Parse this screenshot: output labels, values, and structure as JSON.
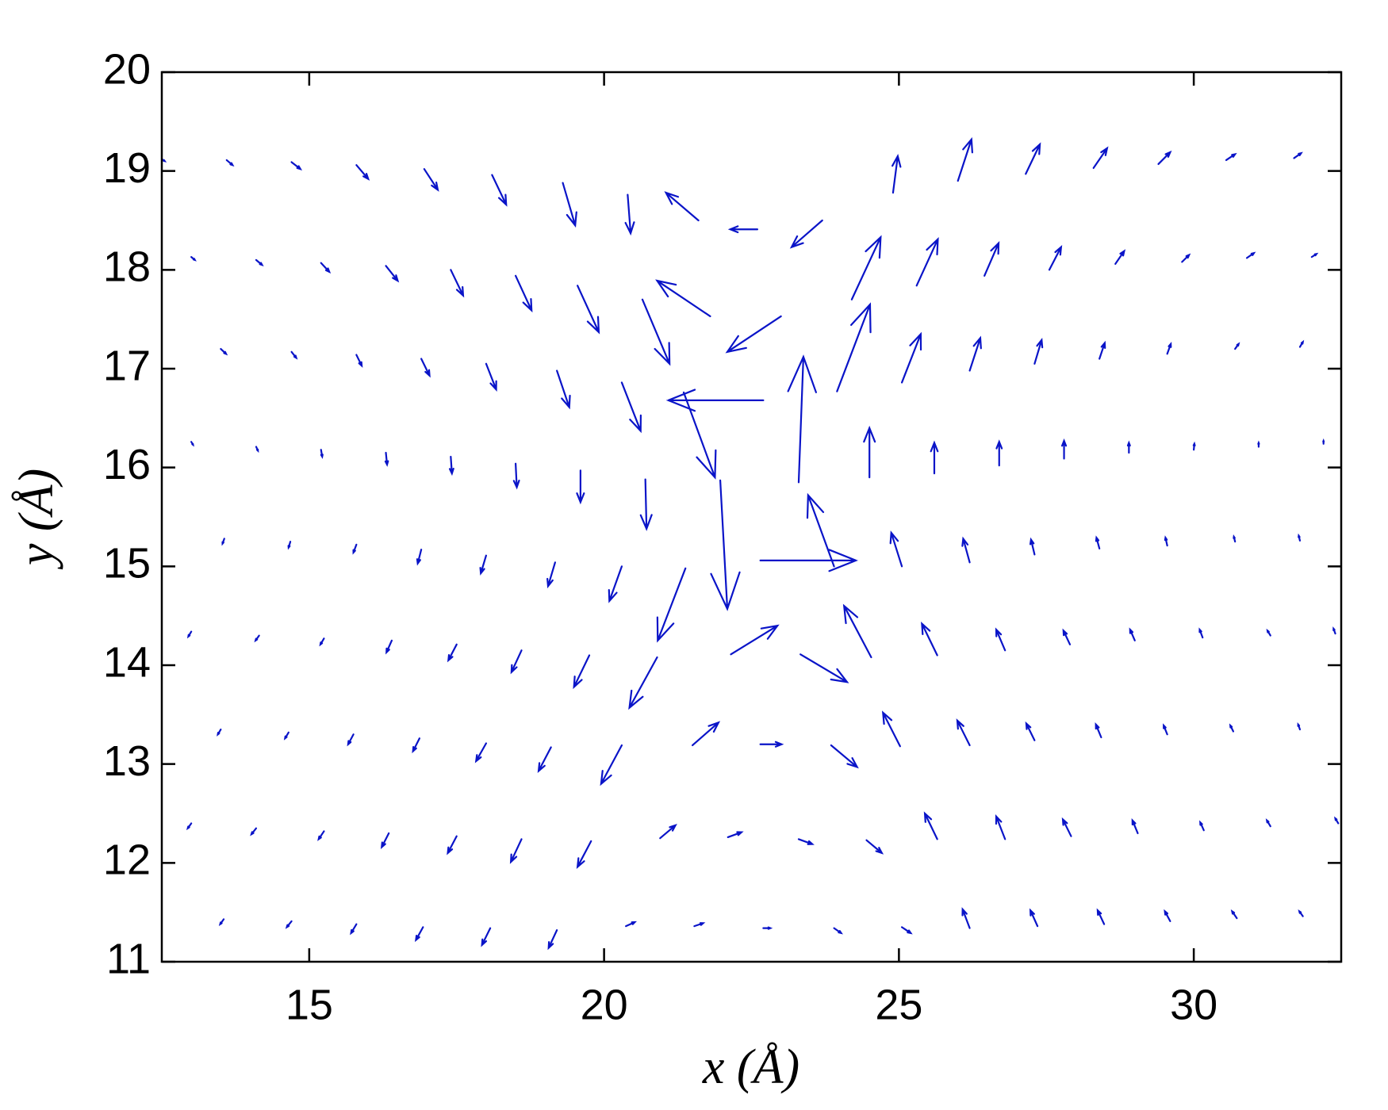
{
  "chart_data": {
    "type": "quiver",
    "xlabel": "x (Å)",
    "ylabel": "y (Å)",
    "xlim": [
      12.5,
      32.5
    ],
    "ylim": [
      11,
      20
    ],
    "xticks": [
      15,
      20,
      25,
      30
    ],
    "yticks": [
      11,
      12,
      13,
      14,
      15,
      16,
      17,
      18,
      19,
      20
    ],
    "color": "#0a14c8",
    "x": [
      12.5,
      13.6,
      14.7,
      15.8,
      16.95,
      18.1,
      19.3,
      20.4,
      21.6,
      22.6,
      23.7,
      24.9,
      26.0,
      27.15,
      28.3,
      29.4,
      30.55,
      31.7,
      13.0,
      14.1,
      15.2,
      16.3,
      17.4,
      18.5,
      19.55,
      20.65,
      21.8,
      23.0,
      24.2,
      25.3,
      26.45,
      27.55,
      28.67,
      29.8,
      30.9,
      32.0,
      13.5,
      14.7,
      15.8,
      16.9,
      18.0,
      19.2,
      20.3,
      22.7,
      23.95,
      25.05,
      26.2,
      27.3,
      28.4,
      29.55,
      30.7,
      31.8,
      13.0,
      14.1,
      15.2,
      16.3,
      17.4,
      18.5,
      19.6,
      20.7,
      21.35,
      23.3,
      24.5,
      25.6,
      26.7,
      27.8,
      28.9,
      30.0,
      31.1,
      32.2,
      13.56,
      14.68,
      15.8,
      16.9,
      18.0,
      19.17,
      20.3,
      21.38,
      21.97,
      22.65,
      23.9,
      25.05,
      26.2,
      27.3,
      28.4,
      29.55,
      30.7,
      31.8,
      13.0,
      14.15,
      15.25,
      16.4,
      17.5,
      18.6,
      19.75,
      20.9,
      22.15,
      23.33,
      24.53,
      25.65,
      26.8,
      27.9,
      29.0,
      30.15,
      31.3,
      32.4,
      13.5,
      14.65,
      15.75,
      16.87,
      18.0,
      19.1,
      20.3,
      21.5,
      22.65,
      23.85,
      25.02,
      26.2,
      27.3,
      28.43,
      29.55,
      30.67,
      31.8,
      13.0,
      14.1,
      15.25,
      16.35,
      17.5,
      18.6,
      19.78,
      20.95,
      22.1,
      23.3,
      24.45,
      25.65,
      26.8,
      27.92,
      29.05,
      30.17,
      31.3,
      32.45,
      13.55,
      14.7,
      15.8,
      16.93,
      18.07,
      19.2,
      20.37,
      21.53,
      22.7,
      23.9,
      25.05,
      26.2,
      27.35,
      28.48,
      29.6,
      30.73,
      31.85
    ],
    "y": [
      19.12,
      19.11,
      19.09,
      19.06,
      19.02,
      18.96,
      18.88,
      18.76,
      18.5,
      18.41,
      18.5,
      18.78,
      18.9,
      18.97,
      19.03,
      19.07,
      19.11,
      19.13,
      18.13,
      18.1,
      18.07,
      18.04,
      18.0,
      17.94,
      17.84,
      17.7,
      17.53,
      17.53,
      17.7,
      17.84,
      17.94,
      18.0,
      18.06,
      18.08,
      18.12,
      18.13,
      17.2,
      17.17,
      17.14,
      17.1,
      17.05,
      16.98,
      16.86,
      16.68,
      16.77,
      16.86,
      16.98,
      17.05,
      17.1,
      17.15,
      17.2,
      17.22,
      16.26,
      16.21,
      16.18,
      16.15,
      16.11,
      16.04,
      15.97,
      15.88,
      16.76,
      15.85,
      15.9,
      15.94,
      16.02,
      16.09,
      16.15,
      16.18,
      16.21,
      16.24,
      15.28,
      15.25,
      15.22,
      15.17,
      15.11,
      15.04,
      15.0,
      14.98,
      15.87,
      15.06,
      15.0,
      15.0,
      15.04,
      15.12,
      15.18,
      15.21,
      15.25,
      15.26,
      14.34,
      14.3,
      14.27,
      14.25,
      14.21,
      14.15,
      14.1,
      14.08,
      14.11,
      14.11,
      14.08,
      14.1,
      14.15,
      14.21,
      14.25,
      14.28,
      14.3,
      14.32,
      13.35,
      13.32,
      13.3,
      13.26,
      13.21,
      13.17,
      13.19,
      13.19,
      13.2,
      13.19,
      13.18,
      13.19,
      13.24,
      13.27,
      13.3,
      13.33,
      13.35,
      12.4,
      12.35,
      12.32,
      12.3,
      12.27,
      12.24,
      12.22,
      12.25,
      12.26,
      12.24,
      12.23,
      12.24,
      12.24,
      12.27,
      12.3,
      12.33,
      12.37,
      12.4,
      11.43,
      11.41,
      11.38,
      11.35,
      11.34,
      11.32,
      11.36,
      11.36,
      11.34,
      11.34,
      11.35,
      11.34,
      11.36,
      11.38,
      11.41,
      11.44,
      11.46
    ],
    "u": [
      0.05,
      0.1,
      0.15,
      0.2,
      0.23,
      0.24,
      0.21,
      0.05,
      -0.55,
      -0.46,
      -0.52,
      0.08,
      0.23,
      0.24,
      0.23,
      0.2,
      0.15,
      0.12,
      0.06,
      0.1,
      0.14,
      0.2,
      0.21,
      0.27,
      0.36,
      0.46,
      -0.9,
      -0.91,
      0.49,
      0.36,
      0.24,
      0.2,
      0.15,
      0.12,
      0.12,
      0.08,
      0.09,
      0.08,
      0.09,
      0.14,
      0.17,
      0.21,
      0.32,
      -1.61,
      0.56,
      0.32,
      0.18,
      0.12,
      0.09,
      0.06,
      0.06,
      0.05,
      0.03,
      0.03,
      0.02,
      0.02,
      0.02,
      0.02,
      0,
      0.02,
      0.53,
      0.08,
      0,
      0,
      0,
      0,
      0,
      0.01,
      0,
      0,
      -0.03,
      -0.03,
      -0.05,
      -0.06,
      -0.09,
      -0.12,
      -0.21,
      -0.47,
      0.12,
      1.62,
      -0.44,
      -0.18,
      -0.11,
      -0.06,
      -0.05,
      -0.03,
      -0.02,
      -0.02,
      -0.05,
      -0.06,
      -0.06,
      -0.09,
      -0.14,
      -0.17,
      -0.26,
      -0.47,
      0.79,
      0.79,
      -0.46,
      -0.26,
      -0.15,
      -0.11,
      -0.08,
      -0.05,
      -0.05,
      -0.03,
      -0.05,
      -0.06,
      -0.09,
      -0.11,
      -0.17,
      -0.21,
      -0.35,
      0.44,
      0.36,
      0.44,
      -0.29,
      -0.21,
      -0.14,
      -0.09,
      -0.06,
      -0.05,
      -0.03,
      -0.06,
      -0.08,
      -0.09,
      -0.12,
      -0.15,
      -0.18,
      -0.23,
      0.26,
      0.23,
      0.23,
      0.26,
      -0.21,
      -0.15,
      -0.14,
      -0.09,
      -0.06,
      -0.06,
      -0.05,
      -0.06,
      -0.08,
      -0.09,
      -0.12,
      -0.14,
      -0.14,
      0.15,
      0.15,
      0.12,
      0.12,
      0.15,
      -0.12,
      -0.12,
      -0.11,
      -0.09,
      -0.08,
      -0.06
    ],
    "v": [
      -0.02,
      -0.05,
      -0.07,
      -0.14,
      -0.21,
      -0.3,
      -0.43,
      -0.39,
      0.28,
      0,
      -0.27,
      0.37,
      0.42,
      0.3,
      0.2,
      0.12,
      0.06,
      0.05,
      -0.03,
      -0.05,
      -0.09,
      -0.15,
      -0.26,
      -0.35,
      -0.47,
      -0.65,
      0.36,
      -0.36,
      0.63,
      0.47,
      0.33,
      0.23,
      0.13,
      0.07,
      0.05,
      0.03,
      -0.05,
      -0.06,
      -0.11,
      -0.17,
      -0.26,
      -0.37,
      -0.49,
      0,
      0.88,
      0.49,
      0.33,
      0.24,
      0.16,
      0.1,
      0.05,
      0.05,
      -0.03,
      -0.04,
      -0.07,
      -0.12,
      -0.17,
      -0.24,
      -0.32,
      -0.5,
      -0.86,
      1.27,
      0.5,
      0.31,
      0.24,
      0.18,
      0.1,
      0.06,
      0.04,
      0.03,
      -0.05,
      -0.06,
      -0.08,
      -0.14,
      -0.18,
      -0.24,
      -0.35,
      -0.73,
      -1.3,
      0,
      0.72,
      0.34,
      0.24,
      0.15,
      0.11,
      0.08,
      0.05,
      0.05,
      -0.05,
      -0.05,
      -0.06,
      -0.12,
      -0.16,
      -0.22,
      -0.32,
      -0.51,
      0.29,
      -0.28,
      0.52,
      0.32,
      0.21,
      0.14,
      0.11,
      0.08,
      0.05,
      0.05,
      -0.05,
      -0.06,
      -0.1,
      -0.13,
      -0.18,
      -0.24,
      -0.39,
      0.23,
      0,
      -0.22,
      0.34,
      0.25,
      0.17,
      0.13,
      0.09,
      0.06,
      0.05,
      -0.05,
      -0.06,
      -0.08,
      -0.14,
      -0.17,
      -0.23,
      -0.26,
      0.13,
      0.05,
      -0.05,
      -0.13,
      0.26,
      0.23,
      0.17,
      0.13,
      0.08,
      0.06,
      0.05,
      -0.05,
      -0.06,
      -0.09,
      -0.13,
      -0.17,
      -0.18,
      0.04,
      0.03,
      0,
      -0.05,
      -0.06,
      0.19,
      0.16,
      0.14,
      0.1,
      0.07,
      0.05
    ]
  }
}
